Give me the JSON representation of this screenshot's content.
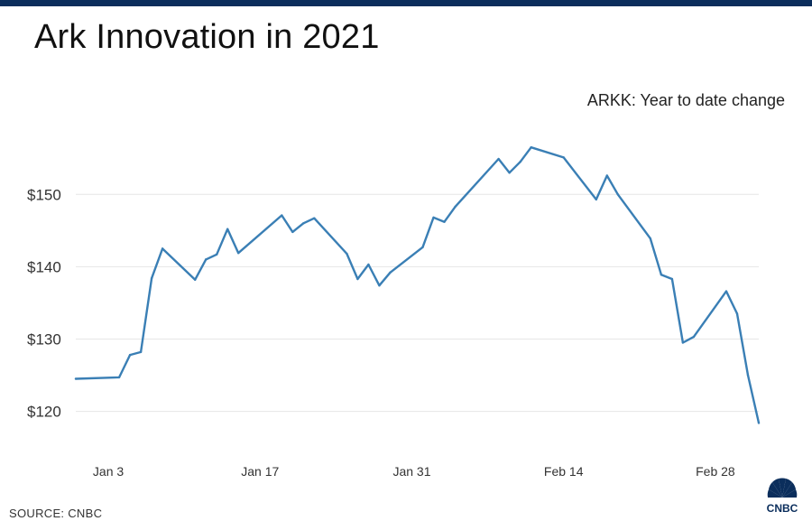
{
  "header": {
    "title": "Ark Innovation in 2021",
    "subtitle": "ARKK: Year to date change"
  },
  "footer": {
    "source": "SOURCE: CNBC",
    "logo_text": "CNBC"
  },
  "colors": {
    "line": "#3a7fb5",
    "grid": "#e6e6e6",
    "top_bar": "#0b2e5c",
    "logo": "#0b2e5c"
  },
  "chart_data": {
    "type": "line",
    "title": "Ark Innovation in 2021",
    "subtitle": "ARKK: Year to date change",
    "xlabel": "",
    "ylabel": "",
    "x_tick_labels": [
      "Jan 3",
      "Jan 17",
      "Jan 31",
      "Feb 14",
      "Feb 28"
    ],
    "x_tick_days": [
      3,
      17,
      31,
      45,
      59
    ],
    "y_tick_values": [
      120,
      130,
      140,
      150
    ],
    "y_tick_labels": [
      "$120",
      "$130",
      "$140",
      "$150"
    ],
    "xlim": [
      0,
      63
    ],
    "ylim": [
      116.2,
      159.4
    ],
    "grid": "horizontal",
    "series": [
      {
        "name": "",
        "x": [
          0,
          4,
          5,
          6,
          7,
          8,
          11,
          12,
          13,
          14,
          15,
          19,
          20,
          21,
          22,
          25,
          26,
          27,
          28,
          29,
          32,
          33,
          34,
          35,
          39,
          40,
          41,
          42,
          45,
          48,
          49,
          50,
          53,
          54,
          55,
          56,
          57,
          60,
          61,
          62,
          63
        ],
        "y": [
          124.5,
          124.7,
          127.8,
          128.2,
          138.4,
          142.5,
          138.2,
          141.0,
          141.7,
          145.2,
          141.9,
          147.1,
          144.8,
          146.0,
          146.7,
          141.8,
          138.3,
          140.3,
          137.4,
          139.2,
          142.7,
          146.8,
          146.2,
          148.3,
          154.9,
          153.0,
          154.5,
          156.5,
          155.1,
          149.3,
          152.6,
          150.0,
          143.9,
          138.9,
          138.3,
          129.5,
          130.3,
          136.6,
          133.5,
          125.0,
          118.4
        ]
      }
    ]
  }
}
